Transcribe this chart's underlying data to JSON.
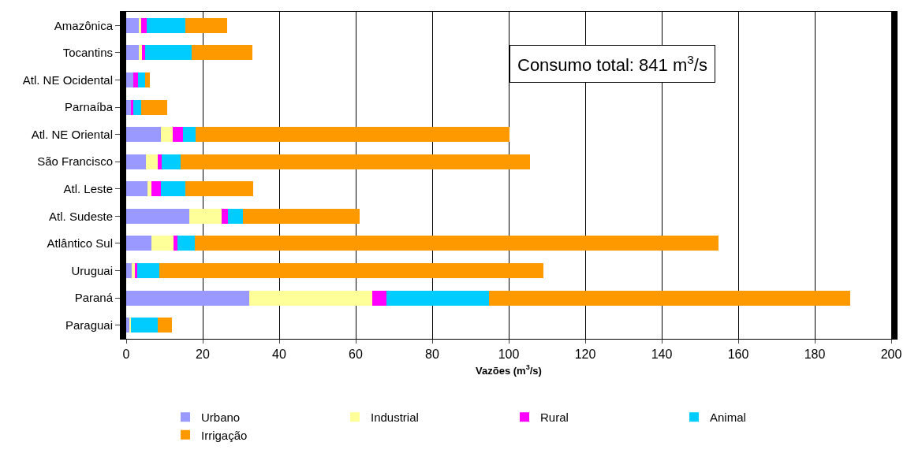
{
  "chart_data": {
    "type": "bar",
    "orientation": "horizontal",
    "stacked": true,
    "categories": [
      "Amazônica",
      "Tocantins",
      "Atl. NE Ocidental",
      "Parnaíba",
      "Atl. NE Oriental",
      "São Francisco",
      "Atl. Leste",
      "Atl. Sudeste",
      "Atlântico Sul",
      "Uruguai",
      "Paraná",
      "Paraguai"
    ],
    "series": [
      {
        "name": "Urbano",
        "color": "#9999ff",
        "values": [
          3.3,
          3.3,
          1.9,
          1.2,
          9.1,
          5.2,
          5.6,
          16.5,
          6.6,
          1.4,
          32.2,
          1.0
        ]
      },
      {
        "name": "Industrial",
        "color": "#ffff99",
        "values": [
          0.6,
          0.8,
          0,
          0,
          3.1,
          3.1,
          1.0,
          8.5,
          5.8,
          1.0,
          32.2,
          0.2
        ]
      },
      {
        "name": "Rural",
        "color": "#ff00ff",
        "values": [
          1.4,
          0.8,
          1.2,
          0.6,
          2.7,
          1.0,
          2.5,
          1.6,
          1.0,
          0.4,
          3.7,
          0
        ]
      },
      {
        "name": "Animal",
        "color": "#00ccff",
        "values": [
          10.1,
          12.2,
          1.9,
          2.1,
          3.3,
          4.9,
          6.4,
          3.9,
          4.5,
          5.8,
          26.8,
          7.0
        ]
      },
      {
        "name": "Irrigação",
        "color": "#ff9900",
        "values": [
          10.9,
          15.9,
          1.2,
          6.8,
          82.1,
          91.3,
          17.7,
          30.5,
          136.9,
          100.4,
          94.4,
          3.7
        ]
      }
    ],
    "xlabel": "Vazões (m$^{3}$/s)",
    "xlim": [
      0,
      200
    ],
    "xticks": [
      0,
      20,
      40,
      60,
      80,
      100,
      120,
      140,
      160,
      180,
      200
    ],
    "grid": "x",
    "legend": "bottom",
    "annotations": [
      "Consumo total: 841 m$^{3}$/s"
    ]
  }
}
